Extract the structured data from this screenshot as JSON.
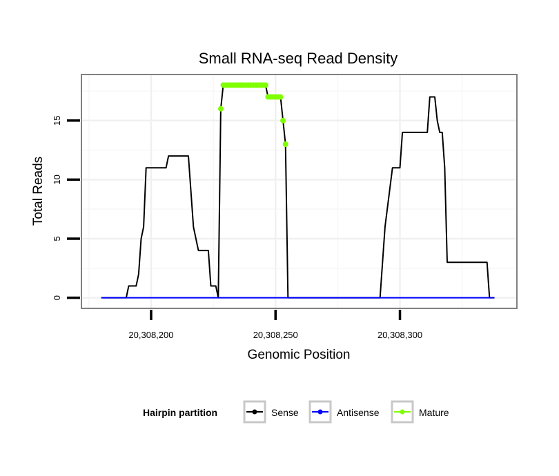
{
  "chart_data": {
    "type": "line",
    "title": "Small RNA-seq Read Density",
    "xlabel": "Genomic Position",
    "ylabel": "Total Reads",
    "xlim": [
      20308172,
      20308347
    ],
    "ylim": [
      -0.9,
      18.9
    ],
    "x_ticks": [
      20308200,
      20308250,
      20308300
    ],
    "x_tick_labels": [
      "20,308,200",
      "20,308,250",
      "20,308,300"
    ],
    "y_ticks": [
      0,
      5,
      10,
      15
    ],
    "y_tick_labels": [
      "0",
      "5",
      "10",
      "15"
    ],
    "grid": true,
    "legend": {
      "title": "Hairpin partition",
      "position": "bottom",
      "entries": [
        {
          "label": "Sense",
          "color": "#000000"
        },
        {
          "label": "Antisense",
          "color": "#0000ff"
        },
        {
          "label": "Mature",
          "color": "#7fff00"
        }
      ]
    },
    "series": [
      {
        "name": "Sense",
        "color": "#000000",
        "points": [
          [
            20308180,
            0
          ],
          [
            20308190,
            0
          ],
          [
            20308191,
            1
          ],
          [
            20308194,
            1
          ],
          [
            20308195,
            2
          ],
          [
            20308196,
            5
          ],
          [
            20308197,
            6
          ],
          [
            20308198,
            11
          ],
          [
            20308206,
            11
          ],
          [
            20308207,
            12
          ],
          [
            20308215,
            12
          ],
          [
            20308217,
            6
          ],
          [
            20308219,
            4
          ],
          [
            20308223,
            4
          ],
          [
            20308224,
            1
          ],
          [
            20308226,
            1
          ],
          [
            20308227,
            0
          ],
          [
            20308228,
            16
          ],
          [
            20308229,
            18
          ],
          [
            20308246,
            18
          ],
          [
            20308247,
            17
          ],
          [
            20308252,
            17
          ],
          [
            20308253,
            15
          ],
          [
            20308254,
            13
          ],
          [
            20308255,
            0
          ],
          [
            20308265,
            0
          ],
          [
            20308275,
            0
          ],
          [
            20308285,
            0
          ],
          [
            20308292,
            0
          ],
          [
            20308293,
            3
          ],
          [
            20308294,
            6
          ],
          [
            20308297,
            11
          ],
          [
            20308300,
            11
          ],
          [
            20308301,
            14
          ],
          [
            20308311,
            14
          ],
          [
            20308312,
            17
          ],
          [
            20308314,
            17
          ],
          [
            20308315,
            15
          ],
          [
            20308316,
            14
          ],
          [
            20308317,
            14
          ],
          [
            20308318,
            11
          ],
          [
            20308319,
            3
          ],
          [
            20308335,
            3
          ],
          [
            20308336,
            0
          ],
          [
            20308338,
            0
          ]
        ]
      },
      {
        "name": "Antisense",
        "color": "#0000ff",
        "points": [
          [
            20308180,
            0
          ],
          [
            20308338,
            0
          ]
        ]
      },
      {
        "name": "Mature",
        "color": "#7fff00",
        "points": [
          [
            20308228,
            16
          ],
          [
            20308229,
            18
          ],
          [
            20308230,
            18
          ],
          [
            20308231,
            18
          ],
          [
            20308232,
            18
          ],
          [
            20308233,
            18
          ],
          [
            20308234,
            18
          ],
          [
            20308235,
            18
          ],
          [
            20308236,
            18
          ],
          [
            20308237,
            18
          ],
          [
            20308238,
            18
          ],
          [
            20308239,
            18
          ],
          [
            20308240,
            18
          ],
          [
            20308241,
            18
          ],
          [
            20308242,
            18
          ],
          [
            20308243,
            18
          ],
          [
            20308244,
            18
          ],
          [
            20308245,
            18
          ],
          [
            20308246,
            18
          ],
          [
            20308247,
            17
          ],
          [
            20308248,
            17
          ],
          [
            20308249,
            17
          ],
          [
            20308250,
            17
          ],
          [
            20308251,
            17
          ],
          [
            20308252,
            17
          ],
          [
            20308253,
            15
          ],
          [
            20308254,
            13
          ]
        ]
      }
    ]
  }
}
